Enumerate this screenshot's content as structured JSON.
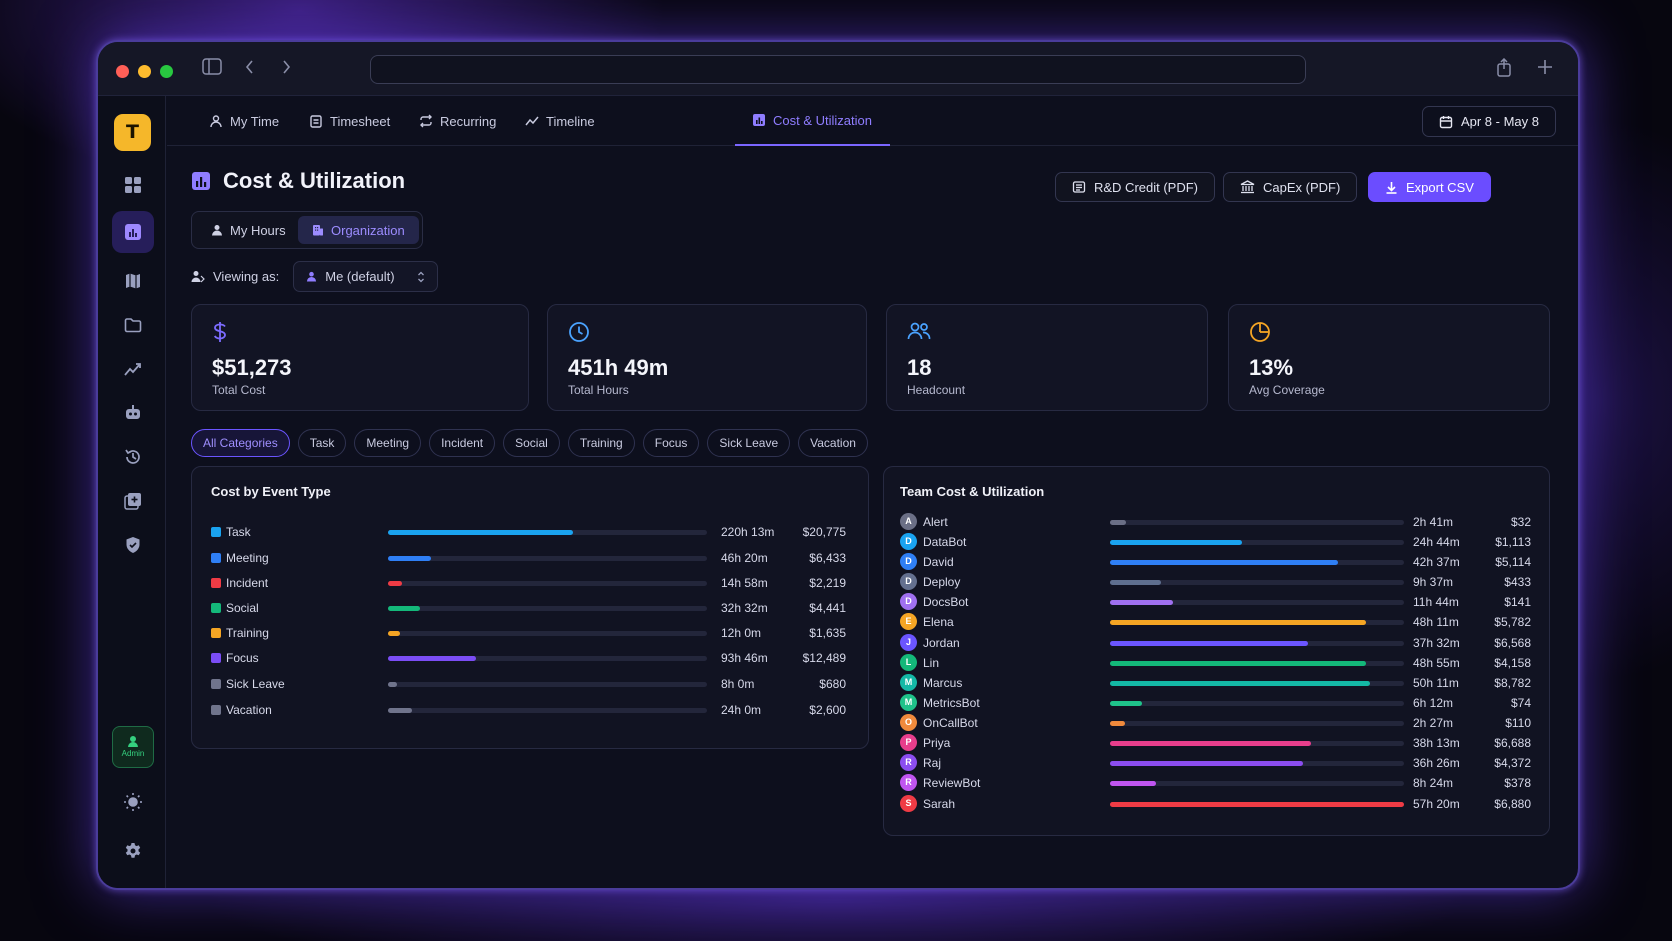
{
  "tabs": [
    {
      "label": "My Time",
      "icon": "user-icon"
    },
    {
      "label": "Timesheet",
      "icon": "clipboard-icon"
    },
    {
      "label": "Recurring",
      "icon": "repeat-icon"
    },
    {
      "label": "Timeline",
      "icon": "trend-icon"
    },
    {
      "label": "Cost & Utilization",
      "icon": "chart-icon",
      "active": true
    }
  ],
  "date_range": "Apr 8 - May 8",
  "logo_letter": "T",
  "admin_label": "Admin",
  "page_title": "Cost & Utilization",
  "actions": {
    "rd_credit": "R&D Credit (PDF)",
    "capex": "CapEx (PDF)",
    "export": "Export CSV"
  },
  "view_toggle": {
    "my_hours": "My Hours",
    "organization": "Organization",
    "selected": "Organization"
  },
  "viewing_as": {
    "label": "Viewing as:",
    "value": "Me (default)"
  },
  "stats": [
    {
      "value": "$51,273",
      "label": "Total Cost",
      "icon": "dollar-icon",
      "color": "#7c6cff"
    },
    {
      "value": "451h 49m",
      "label": "Total Hours",
      "icon": "clock-icon",
      "color": "#4aa3ff"
    },
    {
      "value": "18",
      "label": "Headcount",
      "icon": "users-icon",
      "color": "#4aa3ff"
    },
    {
      "value": "13%",
      "label": "Avg Coverage",
      "icon": "pie-icon",
      "color": "#f5a524"
    }
  ],
  "filters": [
    "All Categories",
    "Task",
    "Meeting",
    "Incident",
    "Social",
    "Training",
    "Focus",
    "Sick Leave",
    "Vacation"
  ],
  "active_filter": "All Categories",
  "cost_by_event": {
    "title": "Cost by Event Type",
    "rows": [
      {
        "name": "Task",
        "hours": "220h 13m",
        "cost": "$20,775",
        "color": "#1aa3f0",
        "pct": 0.58
      },
      {
        "name": "Meeting",
        "hours": "46h 20m",
        "cost": "$6,433",
        "color": "#2f7ff5",
        "pct": 0.135
      },
      {
        "name": "Incident",
        "hours": "14h 58m",
        "cost": "$2,219",
        "color": "#ef3b45",
        "pct": 0.045
      },
      {
        "name": "Social",
        "hours": "32h 32m",
        "cost": "$4,441",
        "color": "#14b87a",
        "pct": 0.1
      },
      {
        "name": "Training",
        "hours": "12h 0m",
        "cost": "$1,635",
        "color": "#f5a524",
        "pct": 0.038
      },
      {
        "name": "Focus",
        "hours": "93h 46m",
        "cost": "$12,489",
        "color": "#7b4df5",
        "pct": 0.275
      },
      {
        "name": "Sick Leave",
        "hours": "8h 0m",
        "cost": "$680",
        "color": "#70748c",
        "pct": 0.028
      },
      {
        "name": "Vacation",
        "hours": "24h 0m",
        "cost": "$2,600",
        "color": "#70748c",
        "pct": 0.075
      }
    ]
  },
  "team": {
    "title": "Team Cost & Utilization",
    "members": [
      {
        "initial": "A",
        "name": "Alert",
        "hours": "2h 41m",
        "cost": "$32",
        "avatar": "#6b6f86",
        "bar": "#6b6f86",
        "pct": 0.055
      },
      {
        "initial": "D",
        "name": "DataBot",
        "hours": "24h 44m",
        "cost": "$1,113",
        "avatar": "#1aa3f0",
        "bar": "#1aa3f0",
        "pct": 0.45
      },
      {
        "initial": "D",
        "name": "David",
        "hours": "42h 37m",
        "cost": "$5,114",
        "avatar": "#2f7ff5",
        "bar": "#2f7ff5",
        "pct": 0.775
      },
      {
        "initial": "D",
        "name": "Deploy",
        "hours": "9h 37m",
        "cost": "$433",
        "avatar": "#64708f",
        "bar": "#5f6f8f",
        "pct": 0.175
      },
      {
        "initial": "D",
        "name": "DocsBot",
        "hours": "11h 44m",
        "cost": "$141",
        "avatar": "#a070f0",
        "bar": "#a070f0",
        "pct": 0.215
      },
      {
        "initial": "E",
        "name": "Elena",
        "hours": "48h 11m",
        "cost": "$5,782",
        "avatar": "#f5a524",
        "bar": "#f5a524",
        "pct": 0.87
      },
      {
        "initial": "J",
        "name": "Jordan",
        "hours": "37h 32m",
        "cost": "$6,568",
        "avatar": "#6b55ff",
        "bar": "#6b55ff",
        "pct": 0.675
      },
      {
        "initial": "L",
        "name": "Lin",
        "hours": "48h 55m",
        "cost": "$4,158",
        "avatar": "#14b87a",
        "bar": "#14b87a",
        "pct": 0.87
      },
      {
        "initial": "M",
        "name": "Marcus",
        "hours": "50h 11m",
        "cost": "$8,782",
        "avatar": "#14b8a6",
        "bar": "#14b8a6",
        "pct": 0.885
      },
      {
        "initial": "M",
        "name": "MetricsBot",
        "hours": "6h 12m",
        "cost": "$74",
        "avatar": "#1fc28a",
        "bar": "#1fc28a",
        "pct": 0.11
      },
      {
        "initial": "O",
        "name": "OnCallBot",
        "hours": "2h 27m",
        "cost": "$110",
        "avatar": "#f08a3c",
        "bar": "#f08a3c",
        "pct": 0.05
      },
      {
        "initial": "P",
        "name": "Priya",
        "hours": "38h 13m",
        "cost": "$6,688",
        "avatar": "#e83e8c",
        "bar": "#e83e8c",
        "pct": 0.685
      },
      {
        "initial": "R",
        "name": "Raj",
        "hours": "36h 26m",
        "cost": "$4,372",
        "avatar": "#8b4df0",
        "bar": "#8b4df0",
        "pct": 0.655
      },
      {
        "initial": "R",
        "name": "ReviewBot",
        "hours": "8h 24m",
        "cost": "$378",
        "avatar": "#c055f0",
        "bar": "#c055f0",
        "pct": 0.155
      },
      {
        "initial": "S",
        "name": "Sarah",
        "hours": "57h 20m",
        "cost": "$6,880",
        "avatar": "#ef3b45",
        "bar": "#ef3b45",
        "pct": 1.0
      }
    ]
  }
}
